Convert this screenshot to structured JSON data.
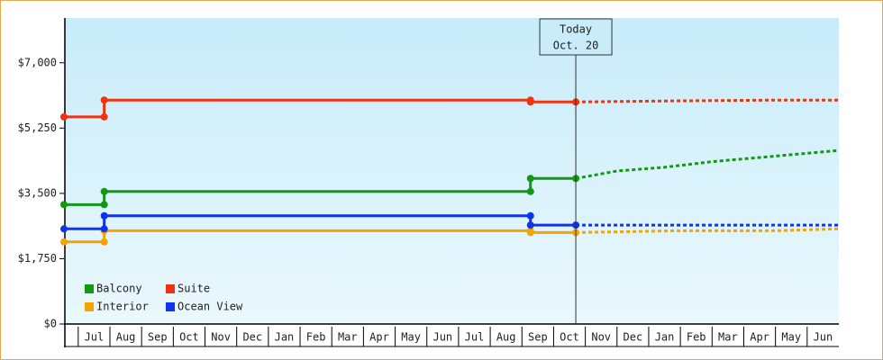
{
  "chart_data": {
    "type": "line",
    "xlim": [
      -0.45,
      24
    ],
    "ylim": [
      0,
      8200
    ],
    "yticks": [
      {
        "value": 0,
        "label": "$0"
      },
      {
        "value": 1750,
        "label": "$1,750"
      },
      {
        "value": 3500,
        "label": "$3,500"
      },
      {
        "value": 5250,
        "label": "$5,250"
      },
      {
        "value": 7000,
        "label": "$7,000"
      }
    ],
    "xticks": [
      {
        "value": 0.5,
        "label": "Jul"
      },
      {
        "value": 1.5,
        "label": "Aug"
      },
      {
        "value": 2.5,
        "label": "Sep"
      },
      {
        "value": 3.5,
        "label": "Oct"
      },
      {
        "value": 4.5,
        "label": "Nov"
      },
      {
        "value": 5.5,
        "label": "Dec"
      },
      {
        "value": 6.5,
        "label": "Jan"
      },
      {
        "value": 7.5,
        "label": "Feb"
      },
      {
        "value": 8.5,
        "label": "Mar"
      },
      {
        "value": 9.5,
        "label": "Apr"
      },
      {
        "value": 10.5,
        "label": "May"
      },
      {
        "value": 11.5,
        "label": "Jun"
      },
      {
        "value": 12.5,
        "label": "Jul"
      },
      {
        "value": 13.5,
        "label": "Aug"
      },
      {
        "value": 14.5,
        "label": "Sep"
      },
      {
        "value": 15.5,
        "label": "Oct"
      },
      {
        "value": 16.5,
        "label": "Nov"
      },
      {
        "value": 17.5,
        "label": "Dec"
      },
      {
        "value": 18.5,
        "label": "Jan"
      },
      {
        "value": 19.5,
        "label": "Feb"
      },
      {
        "value": 20.5,
        "label": "Mar"
      },
      {
        "value": 21.5,
        "label": "Apr"
      },
      {
        "value": 22.5,
        "label": "May"
      },
      {
        "value": 23.5,
        "label": "Jun"
      }
    ],
    "annotation": {
      "x": 15.7,
      "lines": [
        "Today",
        "Oct. 20"
      ]
    },
    "series": [
      {
        "name": "Balcony",
        "color": "#119911",
        "x": [
          -0.45,
          0.82,
          0.82,
          14.27,
          14.27,
          15.7
        ],
        "values": [
          3200,
          3200,
          3550,
          3550,
          3900,
          3900
        ],
        "projected_x": [
          15.7,
          17,
          18.5,
          20,
          22,
          24
        ],
        "projected_values": [
          3900,
          4100,
          4200,
          4350,
          4500,
          4650
        ]
      },
      {
        "name": "Suite",
        "color": "#ee3311",
        "x": [
          -0.45,
          0.82,
          0.82,
          14.27,
          14.27,
          15.7
        ],
        "values": [
          5550,
          5550,
          6000,
          6000,
          5950,
          5950
        ],
        "projected_x": [
          15.7,
          19,
          22,
          24
        ],
        "projected_values": [
          5950,
          5980,
          6000,
          6000
        ]
      },
      {
        "name": "Interior",
        "color": "#f5a300",
        "x": [
          -0.45,
          0.82,
          0.82,
          14.27,
          14.27,
          15.7
        ],
        "values": [
          2200,
          2200,
          2500,
          2500,
          2450,
          2450
        ],
        "projected_x": [
          15.7,
          19,
          22,
          24
        ],
        "projected_values": [
          2450,
          2500,
          2500,
          2550
        ]
      },
      {
        "name": "Ocean View",
        "color": "#1133ee",
        "x": [
          -0.45,
          0.82,
          0.82,
          14.27,
          14.27,
          15.7
        ],
        "values": [
          2550,
          2550,
          2900,
          2900,
          2650,
          2650
        ],
        "projected_x": [
          15.7,
          24
        ],
        "projected_values": [
          2650,
          2650
        ]
      }
    ]
  }
}
